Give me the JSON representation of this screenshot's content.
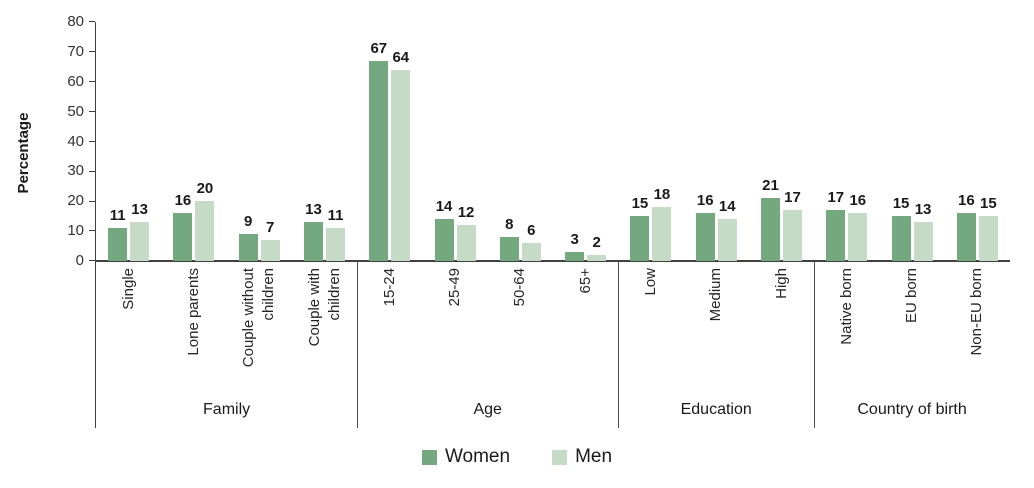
{
  "chart_data": {
    "type": "bar",
    "title": "",
    "ylabel": "Percentage",
    "ylim": [
      0,
      80
    ],
    "yticks": [
      0,
      10,
      20,
      30,
      40,
      50,
      60,
      70,
      80
    ],
    "grid": false,
    "legend_position": "bottom",
    "groups": [
      {
        "label": "Family",
        "categories": [
          "Single",
          "Lone parents",
          "Couple without\nchildren",
          "Couple with\nchildren"
        ]
      },
      {
        "label": "Age",
        "categories": [
          "15-24",
          "25-49",
          "50-64",
          "65+"
        ]
      },
      {
        "label": "Education",
        "categories": [
          "Low",
          "Medium",
          "High"
        ]
      },
      {
        "label": "Country of birth",
        "categories": [
          "Native born",
          "EU born",
          "Non-EU born"
        ]
      }
    ],
    "series": [
      {
        "name": "Women",
        "color": "#74a87e",
        "values": [
          11,
          16,
          9,
          13,
          67,
          14,
          8,
          3,
          15,
          16,
          21,
          17,
          15,
          16
        ]
      },
      {
        "name": "Men",
        "color": "#c6dbc6",
        "values": [
          13,
          20,
          7,
          11,
          64,
          12,
          6,
          2,
          18,
          14,
          17,
          16,
          13,
          15
        ]
      }
    ]
  }
}
